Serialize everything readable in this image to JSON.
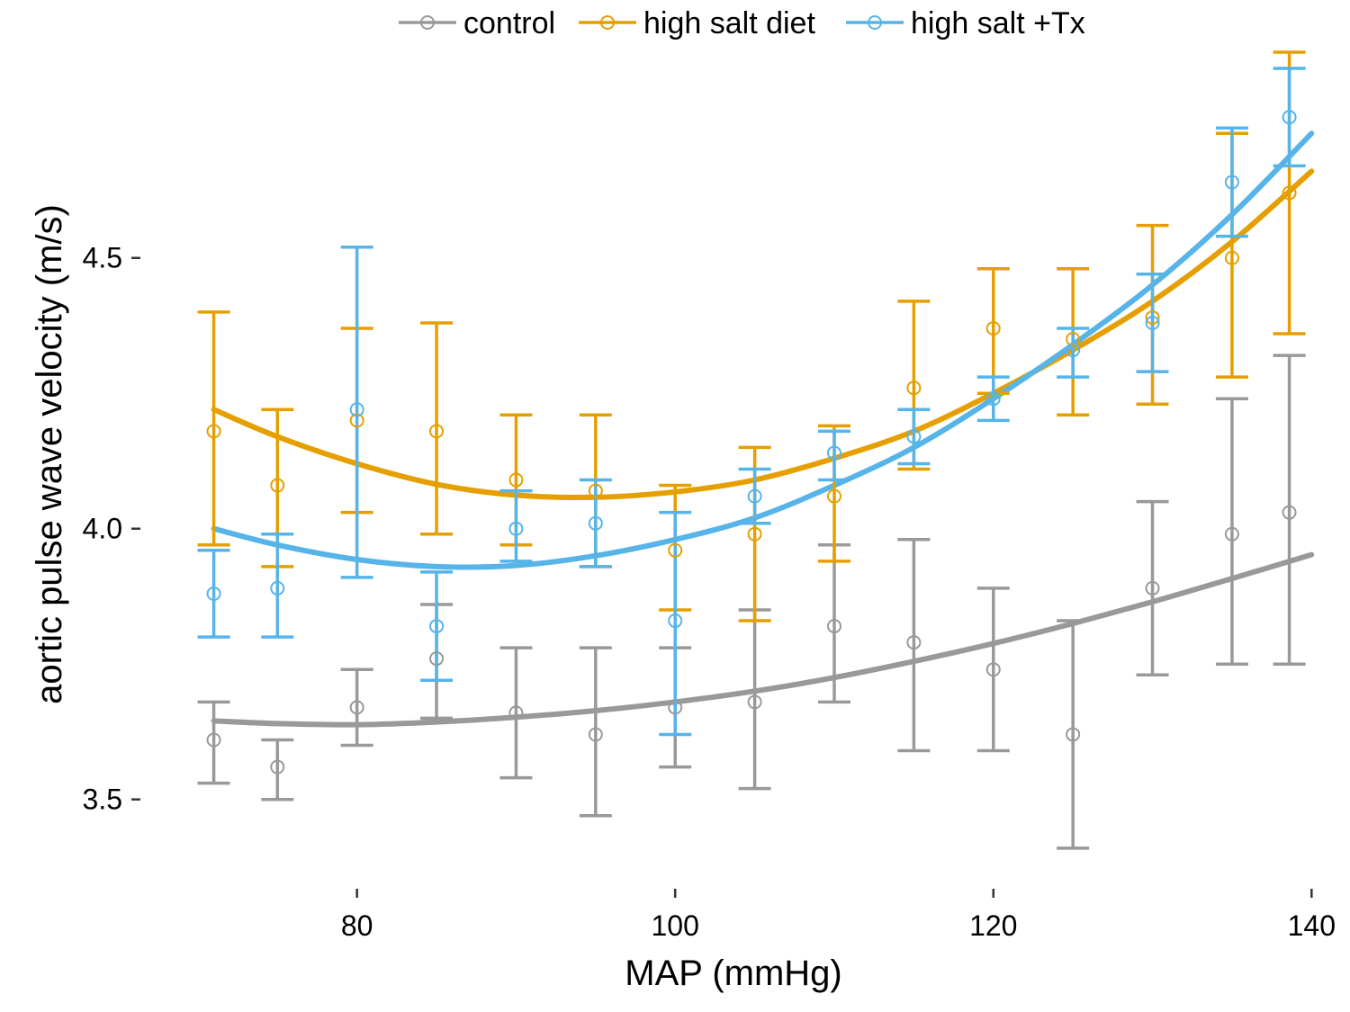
{
  "chart_data": {
    "type": "line",
    "title": "",
    "xlabel": "MAP (mmHg)",
    "ylabel": "aortic pulse wave velocity (m/s)",
    "xlim": [
      66.5,
      141
    ],
    "ylim": [
      3.34,
      4.88
    ],
    "xticks": [
      80,
      100,
      120,
      140
    ],
    "xtick_labels": [
      "80",
      "100",
      "120",
      "140"
    ],
    "yticks": [
      3.5,
      4.0,
      4.5
    ],
    "ytick_labels": [
      "3.5",
      "4.0",
      "4.5"
    ],
    "grid": false,
    "legend_position": "top",
    "series": [
      {
        "name": "control",
        "color": "#999999",
        "points": [
          {
            "x": 71,
            "y": 3.61,
            "lo": 3.53,
            "hi": 3.68
          },
          {
            "x": 75,
            "y": 3.56,
            "lo": 3.5,
            "hi": 3.61
          },
          {
            "x": 80,
            "y": 3.67,
            "lo": 3.6,
            "hi": 3.74
          },
          {
            "x": 85,
            "y": 3.76,
            "lo": 3.65,
            "hi": 3.86
          },
          {
            "x": 90,
            "y": 3.66,
            "lo": 3.54,
            "hi": 3.78
          },
          {
            "x": 95,
            "y": 3.62,
            "lo": 3.47,
            "hi": 3.78
          },
          {
            "x": 100,
            "y": 3.67,
            "lo": 3.56,
            "hi": 3.78
          },
          {
            "x": 105,
            "y": 3.68,
            "lo": 3.52,
            "hi": 3.85
          },
          {
            "x": 110,
            "y": 3.82,
            "lo": 3.68,
            "hi": 3.97
          },
          {
            "x": 115,
            "y": 3.79,
            "lo": 3.59,
            "hi": 3.98
          },
          {
            "x": 120,
            "y": 3.74,
            "lo": 3.59,
            "hi": 3.89
          },
          {
            "x": 125,
            "y": 3.62,
            "lo": 3.41,
            "hi": 3.83
          },
          {
            "x": 130,
            "y": 3.89,
            "lo": 3.73,
            "hi": 4.05
          },
          {
            "x": 135,
            "y": 3.99,
            "lo": 3.75,
            "hi": 4.24
          },
          {
            "x": 138.6,
            "y": 4.03,
            "lo": 3.75,
            "hi": 4.32
          }
        ],
        "fit": [
          {
            "x": 71,
            "y": 3.645
          },
          {
            "x": 75,
            "y": 3.64
          },
          {
            "x": 80,
            "y": 3.638
          },
          {
            "x": 85,
            "y": 3.643
          },
          {
            "x": 90,
            "y": 3.652
          },
          {
            "x": 95,
            "y": 3.664
          },
          {
            "x": 100,
            "y": 3.68
          },
          {
            "x": 105,
            "y": 3.7
          },
          {
            "x": 110,
            "y": 3.725
          },
          {
            "x": 115,
            "y": 3.755
          },
          {
            "x": 120,
            "y": 3.788
          },
          {
            "x": 125,
            "y": 3.825
          },
          {
            "x": 130,
            "y": 3.865
          },
          {
            "x": 135,
            "y": 3.908
          },
          {
            "x": 140,
            "y": 3.952
          }
        ]
      },
      {
        "name": "high salt diet",
        "color": "#E69F00",
        "points": [
          {
            "x": 71,
            "y": 4.18,
            "lo": 3.97,
            "hi": 4.4
          },
          {
            "x": 75,
            "y": 4.08,
            "lo": 3.93,
            "hi": 4.22
          },
          {
            "x": 80,
            "y": 4.2,
            "lo": 4.03,
            "hi": 4.37
          },
          {
            "x": 85,
            "y": 4.18,
            "lo": 3.99,
            "hi": 4.38
          },
          {
            "x": 90,
            "y": 4.09,
            "lo": 3.97,
            "hi": 4.21
          },
          {
            "x": 95,
            "y": 4.07,
            "lo": 3.93,
            "hi": 4.21
          },
          {
            "x": 100,
            "y": 3.96,
            "lo": 3.85,
            "hi": 4.08
          },
          {
            "x": 105,
            "y": 3.99,
            "lo": 3.83,
            "hi": 4.15
          },
          {
            "x": 110,
            "y": 4.06,
            "lo": 3.94,
            "hi": 4.19
          },
          {
            "x": 115,
            "y": 4.26,
            "lo": 4.11,
            "hi": 4.42
          },
          {
            "x": 120,
            "y": 4.37,
            "lo": 4.25,
            "hi": 4.48
          },
          {
            "x": 125,
            "y": 4.35,
            "lo": 4.21,
            "hi": 4.48
          },
          {
            "x": 130,
            "y": 4.39,
            "lo": 4.23,
            "hi": 4.56
          },
          {
            "x": 135,
            "y": 4.5,
            "lo": 4.28,
            "hi": 4.73
          },
          {
            "x": 138.6,
            "y": 4.62,
            "lo": 4.36,
            "hi": 4.88
          }
        ],
        "fit": [
          {
            "x": 71,
            "y": 4.22
          },
          {
            "x": 75,
            "y": 4.17
          },
          {
            "x": 80,
            "y": 4.12
          },
          {
            "x": 85,
            "y": 4.082
          },
          {
            "x": 90,
            "y": 4.062
          },
          {
            "x": 95,
            "y": 4.058
          },
          {
            "x": 100,
            "y": 4.068
          },
          {
            "x": 105,
            "y": 4.09
          },
          {
            "x": 110,
            "y": 4.13
          },
          {
            "x": 115,
            "y": 4.18
          },
          {
            "x": 120,
            "y": 4.25
          },
          {
            "x": 125,
            "y": 4.33
          },
          {
            "x": 130,
            "y": 4.42
          },
          {
            "x": 135,
            "y": 4.53
          },
          {
            "x": 140,
            "y": 4.66
          }
        ]
      },
      {
        "name": "high salt +Tx",
        "color": "#56B4E9",
        "points": [
          {
            "x": 71,
            "y": 3.88,
            "lo": 3.8,
            "hi": 3.96
          },
          {
            "x": 75,
            "y": 3.89,
            "lo": 3.8,
            "hi": 3.99
          },
          {
            "x": 80,
            "y": 4.22,
            "lo": 3.91,
            "hi": 4.52
          },
          {
            "x": 85,
            "y": 3.82,
            "lo": 3.72,
            "hi": 3.92
          },
          {
            "x": 90,
            "y": 4.0,
            "lo": 3.94,
            "hi": 4.07
          },
          {
            "x": 95,
            "y": 4.01,
            "lo": 3.93,
            "hi": 4.09
          },
          {
            "x": 100,
            "y": 3.83,
            "lo": 3.62,
            "hi": 4.03
          },
          {
            "x": 105,
            "y": 4.06,
            "lo": 4.01,
            "hi": 4.11
          },
          {
            "x": 110,
            "y": 4.14,
            "lo": 4.09,
            "hi": 4.18
          },
          {
            "x": 115,
            "y": 4.17,
            "lo": 4.12,
            "hi": 4.22
          },
          {
            "x": 120,
            "y": 4.24,
            "lo": 4.2,
            "hi": 4.28
          },
          {
            "x": 125,
            "y": 4.33,
            "lo": 4.28,
            "hi": 4.37
          },
          {
            "x": 130,
            "y": 4.38,
            "lo": 4.29,
            "hi": 4.47
          },
          {
            "x": 135,
            "y": 4.64,
            "lo": 4.54,
            "hi": 4.74
          },
          {
            "x": 138.6,
            "y": 4.76,
            "lo": 4.67,
            "hi": 4.85
          }
        ],
        "fit": [
          {
            "x": 71,
            "y": 4.0
          },
          {
            "x": 75,
            "y": 3.97
          },
          {
            "x": 80,
            "y": 3.943
          },
          {
            "x": 85,
            "y": 3.93
          },
          {
            "x": 90,
            "y": 3.932
          },
          {
            "x": 95,
            "y": 3.95
          },
          {
            "x": 100,
            "y": 3.98
          },
          {
            "x": 105,
            "y": 4.02
          },
          {
            "x": 110,
            "y": 4.08
          },
          {
            "x": 115,
            "y": 4.15
          },
          {
            "x": 120,
            "y": 4.24
          },
          {
            "x": 125,
            "y": 4.34
          },
          {
            "x": 130,
            "y": 4.45
          },
          {
            "x": 135,
            "y": 4.58
          },
          {
            "x": 140,
            "y": 4.73
          }
        ]
      }
    ]
  }
}
